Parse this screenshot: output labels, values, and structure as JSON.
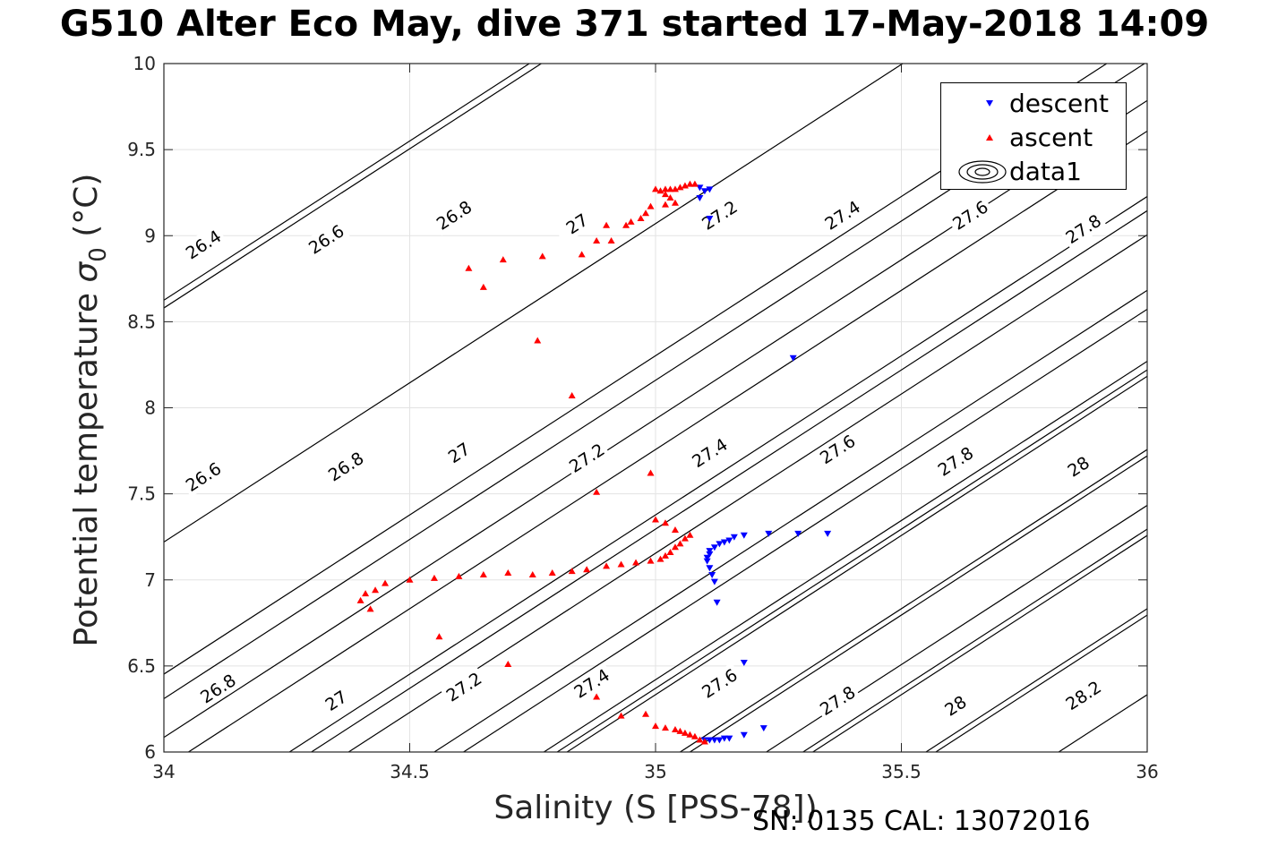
{
  "title": "G510 Alter Eco May, dive 371 started 17-May-2018 14:09",
  "footer": "SN: 0135  CAL: 13072016",
  "chart_data": {
    "type": "scatter",
    "xlabel": "Salinity (S [PSS-78])",
    "ylabel": "Potential temperature σ₀ (°C)",
    "ylabel_main": "Potential temperature ",
    "ylabel_sigma": "σ",
    "ylabel_sub": "0",
    "ylabel_unit": " (°C)",
    "xlim": [
      34,
      36
    ],
    "ylim": [
      6,
      10
    ],
    "xticks": [
      34,
      34.5,
      35,
      35.5,
      36
    ],
    "xtick_labels": [
      "34",
      "34.5",
      "35",
      "35.5",
      "36"
    ],
    "yticks": [
      6,
      6.5,
      7,
      7.5,
      8,
      8.5,
      9,
      9.5,
      10
    ],
    "ytick_labels": [
      "6",
      "6.5",
      "7",
      "7.5",
      "8",
      "8.5",
      "9",
      "9.5",
      "10"
    ],
    "grid": true,
    "legend_position": "top-right",
    "contour_levels": [
      {
        "label": "26.4",
        "anchor": [
          34.0,
          8.58
        ],
        "slope": 1.85,
        "label_at": [
          34.08,
          8.95
        ]
      },
      {
        "label": "26.6",
        "anchor": [
          34.0,
          7.22
        ],
        "slope": 1.85,
        "label_at": [
          34.08,
          7.6
        ]
      },
      {
        "label": "26.6",
        "anchor": [
          34.3,
          9.18
        ],
        "slope": 1.85,
        "label_at": [
          34.33,
          8.98
        ]
      },
      {
        "label": "26.8",
        "anchor": [
          34.05,
          6.0
        ],
        "slope": 1.85,
        "label_at": [
          34.11,
          6.37
        ]
      },
      {
        "label": "26.8",
        "anchor": [
          34.3,
          6.64
        ],
        "slope": 1.85,
        "label_at": [
          34.37,
          7.66
        ]
      },
      {
        "label": "26.8",
        "anchor": [
          34.55,
          7.47
        ],
        "slope": 1.85,
        "label_at": [
          34.59,
          9.12
        ]
      },
      {
        "label": "27",
        "anchor": [
          34.3,
          6.0
        ],
        "slope": 1.85,
        "label_at": [
          34.35,
          6.3
        ]
      },
      {
        "label": "27",
        "anchor": [
          34.55,
          6.0
        ],
        "slope": 1.85,
        "label_at": [
          34.6,
          7.74
        ]
      },
      {
        "label": "27",
        "anchor": [
          34.8,
          7.79
        ],
        "slope": 1.85,
        "label_at": [
          34.84,
          9.07
        ]
      },
      {
        "label": "27.2",
        "anchor": [
          34.55,
          6.0
        ],
        "slope": 1.85,
        "label_at": [
          34.61,
          6.38
        ]
      },
      {
        "label": "27.2",
        "anchor": [
          34.8,
          6.0
        ],
        "slope": 1.85,
        "label_at": [
          34.86,
          7.71
        ]
      },
      {
        "label": "27.2",
        "anchor": [
          35.05,
          7.47
        ],
        "slope": 1.85,
        "label_at": [
          35.13,
          9.12
        ]
      },
      {
        "label": "27.4",
        "anchor": [
          34.82,
          6.0
        ],
        "slope": 1.85,
        "label_at": [
          34.87,
          6.4
        ]
      },
      {
        "label": "27.4",
        "anchor": [
          35.05,
          6.0
        ],
        "slope": 1.85,
        "label_at": [
          35.11,
          7.74
        ]
      },
      {
        "label": "27.4",
        "anchor": [
          35.3,
          7.71
        ],
        "slope": 1.85,
        "label_at": [
          35.38,
          9.12
        ]
      },
      {
        "label": "27.6",
        "anchor": [
          35.07,
          6.0
        ],
        "slope": 1.85,
        "label_at": [
          35.13,
          6.4
        ]
      },
      {
        "label": "27.6",
        "anchor": [
          35.3,
          6.0
        ],
        "slope": 1.85,
        "label_at": [
          35.37,
          7.76
        ]
      },
      {
        "label": "27.6",
        "anchor": [
          35.55,
          7.74
        ],
        "slope": 1.85,
        "label_at": [
          35.64,
          9.12
        ]
      },
      {
        "label": "27.8",
        "anchor": [
          35.32,
          6.0
        ],
        "slope": 1.85,
        "label_at": [
          35.37,
          6.3
        ]
      },
      {
        "label": "27.8",
        "anchor": [
          35.55,
          6.0
        ],
        "slope": 1.85,
        "label_at": [
          35.61,
          7.69
        ]
      },
      {
        "label": "27.8",
        "anchor": [
          35.8,
          7.9
        ],
        "slope": 1.85,
        "label_at": [
          35.87,
          9.04
        ]
      },
      {
        "label": "28",
        "anchor": [
          35.57,
          6.0
        ],
        "slope": 1.85,
        "label_at": [
          35.61,
          6.27
        ]
      },
      {
        "label": "28",
        "anchor": [
          35.82,
          7.1
        ],
        "slope": 1.85,
        "label_at": [
          35.86,
          7.66
        ]
      },
      {
        "label": "28.2",
        "anchor": [
          35.82,
          6.0
        ],
        "slope": 1.85,
        "label_at": [
          35.87,
          6.33
        ]
      }
    ],
    "series": [
      {
        "name": "descent",
        "marker": "triangle-down",
        "color": "#0000ff",
        "points": [
          [
            35.09,
            9.28
          ],
          [
            35.1,
            9.26
          ],
          [
            35.11,
            9.27
          ],
          [
            35.09,
            9.22
          ],
          [
            35.11,
            9.1
          ],
          [
            35.28,
            8.29
          ],
          [
            35.35,
            7.27
          ],
          [
            35.29,
            7.27
          ],
          [
            35.23,
            7.27
          ],
          [
            35.18,
            7.26
          ],
          [
            35.16,
            7.25
          ],
          [
            35.15,
            7.23
          ],
          [
            35.14,
            7.22
          ],
          [
            35.13,
            7.21
          ],
          [
            35.12,
            7.19
          ],
          [
            35.11,
            7.17
          ],
          [
            35.11,
            7.15
          ],
          [
            35.105,
            7.13
          ],
          [
            35.105,
            7.11
          ],
          [
            35.11,
            7.07
          ],
          [
            35.115,
            7.03
          ],
          [
            35.12,
            6.99
          ],
          [
            35.125,
            6.87
          ],
          [
            35.18,
            6.52
          ],
          [
            35.22,
            6.14
          ],
          [
            35.18,
            6.1
          ],
          [
            35.15,
            6.08
          ],
          [
            35.14,
            6.08
          ],
          [
            35.13,
            6.07
          ],
          [
            35.12,
            6.07
          ],
          [
            35.11,
            6.07
          ],
          [
            35.1,
            6.07
          ]
        ]
      },
      {
        "name": "ascent",
        "marker": "triangle-up",
        "color": "#ff0000",
        "points": [
          [
            35.08,
            9.3
          ],
          [
            35.07,
            9.3
          ],
          [
            35.06,
            9.29
          ],
          [
            35.05,
            9.28
          ],
          [
            35.04,
            9.27
          ],
          [
            35.03,
            9.27
          ],
          [
            35.02,
            9.27
          ],
          [
            35.01,
            9.26
          ],
          [
            35.0,
            9.27
          ],
          [
            35.02,
            9.24
          ],
          [
            35.03,
            9.22
          ],
          [
            35.04,
            9.19
          ],
          [
            35.02,
            9.18
          ],
          [
            34.99,
            9.17
          ],
          [
            34.98,
            9.13
          ],
          [
            34.97,
            9.1
          ],
          [
            34.95,
            9.08
          ],
          [
            34.94,
            9.06
          ],
          [
            34.9,
            9.06
          ],
          [
            34.91,
            8.97
          ],
          [
            34.88,
            8.97
          ],
          [
            34.85,
            8.89
          ],
          [
            34.77,
            8.88
          ],
          [
            34.69,
            8.86
          ],
          [
            34.62,
            8.81
          ],
          [
            34.65,
            8.7
          ],
          [
            34.76,
            8.39
          ],
          [
            34.83,
            8.07
          ],
          [
            34.99,
            7.62
          ],
          [
            34.88,
            7.51
          ],
          [
            35.0,
            7.35
          ],
          [
            35.02,
            7.33
          ],
          [
            35.04,
            7.29
          ],
          [
            35.07,
            7.26
          ],
          [
            35.06,
            7.24
          ],
          [
            35.05,
            7.21
          ],
          [
            35.04,
            7.19
          ],
          [
            35.03,
            7.16
          ],
          [
            35.02,
            7.14
          ],
          [
            35.01,
            7.12
          ],
          [
            34.99,
            7.11
          ],
          [
            34.96,
            7.1
          ],
          [
            34.93,
            7.09
          ],
          [
            34.9,
            7.08
          ],
          [
            34.86,
            7.06
          ],
          [
            34.83,
            7.05
          ],
          [
            34.79,
            7.04
          ],
          [
            34.75,
            7.03
          ],
          [
            34.7,
            7.04
          ],
          [
            34.65,
            7.03
          ],
          [
            34.6,
            7.02
          ],
          [
            34.55,
            7.01
          ],
          [
            34.5,
            7.0
          ],
          [
            34.45,
            6.98
          ],
          [
            34.43,
            6.94
          ],
          [
            34.41,
            6.92
          ],
          [
            34.4,
            6.88
          ],
          [
            34.42,
            6.83
          ],
          [
            34.56,
            6.67
          ],
          [
            34.7,
            6.51
          ],
          [
            34.88,
            6.32
          ],
          [
            34.93,
            6.21
          ],
          [
            34.98,
            6.22
          ],
          [
            35.0,
            6.15
          ],
          [
            35.02,
            6.14
          ],
          [
            35.04,
            6.13
          ],
          [
            35.05,
            6.12
          ],
          [
            35.06,
            6.11
          ],
          [
            35.07,
            6.1
          ],
          [
            35.08,
            6.09
          ],
          [
            35.09,
            6.07
          ],
          [
            35.1,
            6.06
          ]
        ]
      }
    ],
    "legend": [
      "descent",
      "ascent",
      "data1"
    ]
  }
}
